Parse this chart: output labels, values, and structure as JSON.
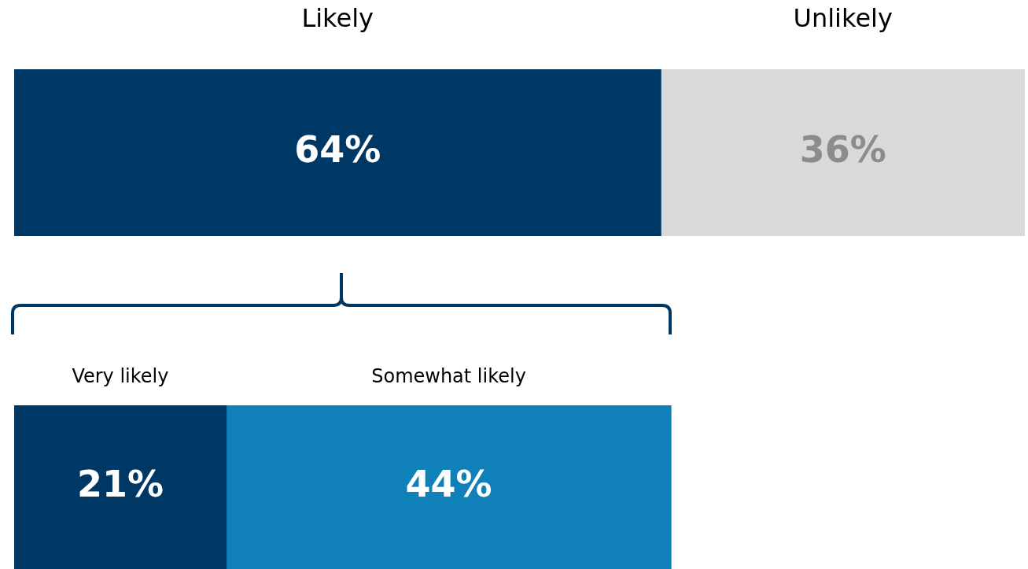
{
  "chart_data": [
    {
      "type": "bar",
      "orientation": "horizontal",
      "stacked": true,
      "categories": [
        null
      ],
      "tick_labels": false,
      "series": [
        {
          "name": "Likely",
          "color": "#003865",
          "values": [
            64
          ],
          "value_labels": [
            "64%"
          ]
        },
        {
          "name": "Unlikely",
          "color": "#d9d9d9",
          "values": [
            36
          ],
          "value_labels": [
            "36%"
          ]
        }
      ]
    },
    {
      "type": "bar",
      "orientation": "horizontal",
      "stacked": true,
      "categories": [
        null
      ],
      "tick_labels": false,
      "series": [
        {
          "name": "Very likely",
          "color": "#003865",
          "values": [
            21
          ],
          "value_labels": [
            "21%"
          ]
        },
        {
          "name": "Somewhat likely",
          "color": "#1080b8",
          "values": [
            44
          ],
          "value_labels": [
            "44%"
          ]
        }
      ]
    }
  ]
}
